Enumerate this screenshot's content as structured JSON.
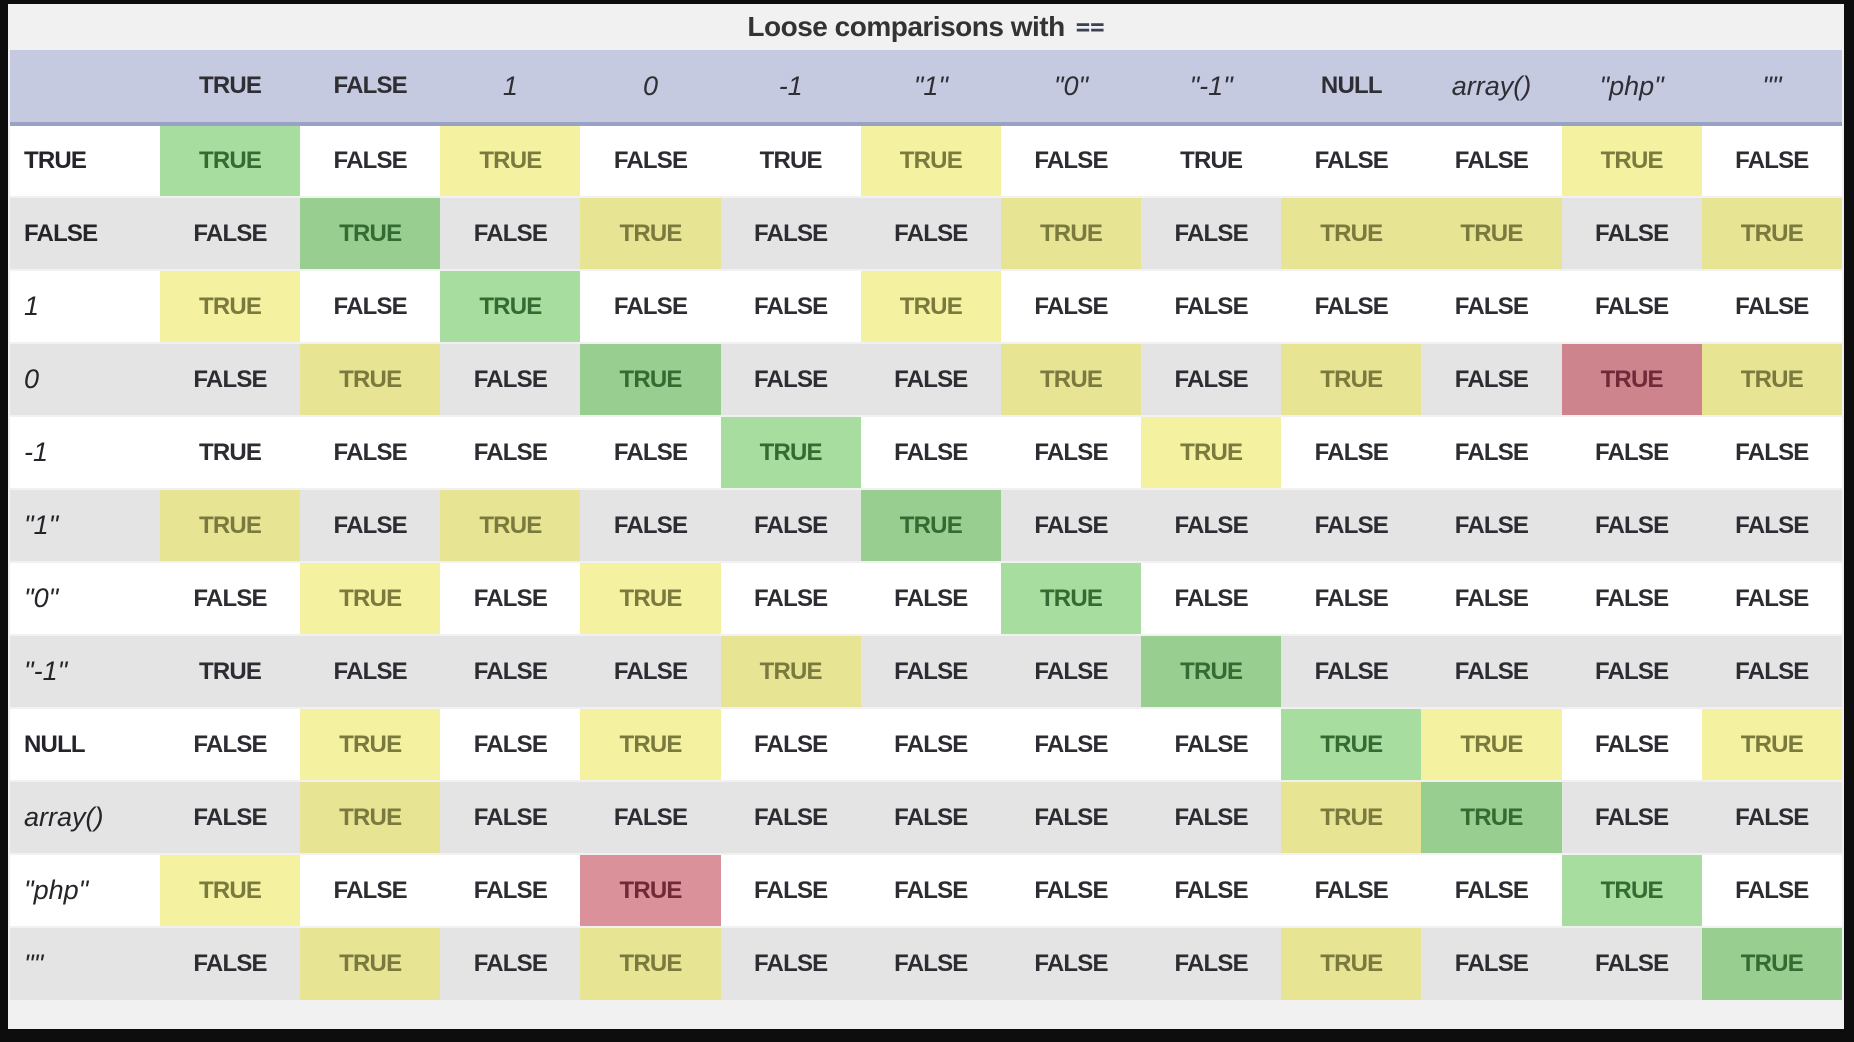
{
  "title": {
    "text": "Loose comparisons with",
    "operator": "=="
  },
  "colors": {
    "frame_bg": "#f1f1f1",
    "border_black": "#0d0d0d",
    "header_bg": "#c5cae1",
    "header_border": "#99a1c4",
    "row_alt_bg": "#e4e4e4",
    "cell_text": "#2c2c32",
    "true_same_type_bg": "rgba(60,180,40,0.45)",
    "true_same_type_text": "#346b33",
    "true_loose_bg": "rgba(233,227,67,0.5)",
    "true_loose_text": "#7b7a3e",
    "true_surprising_bg": "rgba(183,35,51,0.5)",
    "true_surprising_text": "#6f2a37"
  },
  "table": {
    "corner_label": "",
    "columns": [
      {
        "label": "TRUE",
        "kind": "keyword"
      },
      {
        "label": "FALSE",
        "kind": "keyword"
      },
      {
        "label": "1",
        "kind": "literal"
      },
      {
        "label": "0",
        "kind": "literal"
      },
      {
        "label": "-1",
        "kind": "literal"
      },
      {
        "label": "\"1\"",
        "kind": "literal"
      },
      {
        "label": "\"0\"",
        "kind": "literal"
      },
      {
        "label": "\"-1\"",
        "kind": "literal"
      },
      {
        "label": "NULL",
        "kind": "keyword"
      },
      {
        "label": "array()",
        "kind": "literal"
      },
      {
        "label": "\"php\"",
        "kind": "literal"
      },
      {
        "label": "\"\"",
        "kind": "literal"
      }
    ],
    "rows": [
      {
        "label": "TRUE",
        "kind": "keyword",
        "cells": [
          {
            "v": "TRUE",
            "hl": "green"
          },
          {
            "v": "FALSE"
          },
          {
            "v": "TRUE",
            "hl": "yellow"
          },
          {
            "v": "FALSE"
          },
          {
            "v": "TRUE"
          },
          {
            "v": "TRUE",
            "hl": "yellow"
          },
          {
            "v": "FALSE"
          },
          {
            "v": "TRUE"
          },
          {
            "v": "FALSE"
          },
          {
            "v": "FALSE"
          },
          {
            "v": "TRUE",
            "hl": "yellow"
          },
          {
            "v": "FALSE"
          }
        ]
      },
      {
        "label": "FALSE",
        "kind": "keyword",
        "cells": [
          {
            "v": "FALSE"
          },
          {
            "v": "TRUE",
            "hl": "green"
          },
          {
            "v": "FALSE"
          },
          {
            "v": "TRUE",
            "hl": "yellow"
          },
          {
            "v": "FALSE"
          },
          {
            "v": "FALSE"
          },
          {
            "v": "TRUE",
            "hl": "yellow"
          },
          {
            "v": "FALSE"
          },
          {
            "v": "TRUE",
            "hl": "yellow"
          },
          {
            "v": "TRUE",
            "hl": "yellow"
          },
          {
            "v": "FALSE"
          },
          {
            "v": "TRUE",
            "hl": "yellow"
          }
        ]
      },
      {
        "label": "1",
        "kind": "literal",
        "cells": [
          {
            "v": "TRUE",
            "hl": "yellow"
          },
          {
            "v": "FALSE"
          },
          {
            "v": "TRUE",
            "hl": "green"
          },
          {
            "v": "FALSE"
          },
          {
            "v": "FALSE"
          },
          {
            "v": "TRUE",
            "hl": "yellow"
          },
          {
            "v": "FALSE"
          },
          {
            "v": "FALSE"
          },
          {
            "v": "FALSE"
          },
          {
            "v": "FALSE"
          },
          {
            "v": "FALSE"
          },
          {
            "v": "FALSE"
          }
        ]
      },
      {
        "label": "0",
        "kind": "literal",
        "cells": [
          {
            "v": "FALSE"
          },
          {
            "v": "TRUE",
            "hl": "yellow"
          },
          {
            "v": "FALSE"
          },
          {
            "v": "TRUE",
            "hl": "green"
          },
          {
            "v": "FALSE"
          },
          {
            "v": "FALSE"
          },
          {
            "v": "TRUE",
            "hl": "yellow"
          },
          {
            "v": "FALSE"
          },
          {
            "v": "TRUE",
            "hl": "yellow"
          },
          {
            "v": "FALSE"
          },
          {
            "v": "TRUE",
            "hl": "red"
          },
          {
            "v": "TRUE",
            "hl": "yellow"
          }
        ]
      },
      {
        "label": "-1",
        "kind": "literal",
        "cells": [
          {
            "v": "TRUE"
          },
          {
            "v": "FALSE"
          },
          {
            "v": "FALSE"
          },
          {
            "v": "FALSE"
          },
          {
            "v": "TRUE",
            "hl": "green"
          },
          {
            "v": "FALSE"
          },
          {
            "v": "FALSE"
          },
          {
            "v": "TRUE",
            "hl": "yellow"
          },
          {
            "v": "FALSE"
          },
          {
            "v": "FALSE"
          },
          {
            "v": "FALSE"
          },
          {
            "v": "FALSE"
          }
        ]
      },
      {
        "label": "\"1\"",
        "kind": "literal",
        "cells": [
          {
            "v": "TRUE",
            "hl": "yellow"
          },
          {
            "v": "FALSE"
          },
          {
            "v": "TRUE",
            "hl": "yellow"
          },
          {
            "v": "FALSE"
          },
          {
            "v": "FALSE"
          },
          {
            "v": "TRUE",
            "hl": "green"
          },
          {
            "v": "FALSE"
          },
          {
            "v": "FALSE"
          },
          {
            "v": "FALSE"
          },
          {
            "v": "FALSE"
          },
          {
            "v": "FALSE"
          },
          {
            "v": "FALSE"
          }
        ]
      },
      {
        "label": "\"0\"",
        "kind": "literal",
        "cells": [
          {
            "v": "FALSE"
          },
          {
            "v": "TRUE",
            "hl": "yellow"
          },
          {
            "v": "FALSE"
          },
          {
            "v": "TRUE",
            "hl": "yellow"
          },
          {
            "v": "FALSE"
          },
          {
            "v": "FALSE"
          },
          {
            "v": "TRUE",
            "hl": "green"
          },
          {
            "v": "FALSE"
          },
          {
            "v": "FALSE"
          },
          {
            "v": "FALSE"
          },
          {
            "v": "FALSE"
          },
          {
            "v": "FALSE"
          }
        ]
      },
      {
        "label": "\"-1\"",
        "kind": "literal",
        "cells": [
          {
            "v": "TRUE"
          },
          {
            "v": "FALSE"
          },
          {
            "v": "FALSE"
          },
          {
            "v": "FALSE"
          },
          {
            "v": "TRUE",
            "hl": "yellow"
          },
          {
            "v": "FALSE"
          },
          {
            "v": "FALSE"
          },
          {
            "v": "TRUE",
            "hl": "green"
          },
          {
            "v": "FALSE"
          },
          {
            "v": "FALSE"
          },
          {
            "v": "FALSE"
          },
          {
            "v": "FALSE"
          }
        ]
      },
      {
        "label": "NULL",
        "kind": "keyword",
        "cells": [
          {
            "v": "FALSE"
          },
          {
            "v": "TRUE",
            "hl": "yellow"
          },
          {
            "v": "FALSE"
          },
          {
            "v": "TRUE",
            "hl": "yellow"
          },
          {
            "v": "FALSE"
          },
          {
            "v": "FALSE"
          },
          {
            "v": "FALSE"
          },
          {
            "v": "FALSE"
          },
          {
            "v": "TRUE",
            "hl": "green"
          },
          {
            "v": "TRUE",
            "hl": "yellow"
          },
          {
            "v": "FALSE"
          },
          {
            "v": "TRUE",
            "hl": "yellow"
          }
        ]
      },
      {
        "label": "array()",
        "kind": "literal",
        "cells": [
          {
            "v": "FALSE"
          },
          {
            "v": "TRUE",
            "hl": "yellow"
          },
          {
            "v": "FALSE"
          },
          {
            "v": "FALSE"
          },
          {
            "v": "FALSE"
          },
          {
            "v": "FALSE"
          },
          {
            "v": "FALSE"
          },
          {
            "v": "FALSE"
          },
          {
            "v": "TRUE",
            "hl": "yellow"
          },
          {
            "v": "TRUE",
            "hl": "green"
          },
          {
            "v": "FALSE"
          },
          {
            "v": "FALSE"
          }
        ]
      },
      {
        "label": "\"php\"",
        "kind": "literal",
        "cells": [
          {
            "v": "TRUE",
            "hl": "yellow"
          },
          {
            "v": "FALSE"
          },
          {
            "v": "FALSE"
          },
          {
            "v": "TRUE",
            "hl": "red"
          },
          {
            "v": "FALSE"
          },
          {
            "v": "FALSE"
          },
          {
            "v": "FALSE"
          },
          {
            "v": "FALSE"
          },
          {
            "v": "FALSE"
          },
          {
            "v": "FALSE"
          },
          {
            "v": "TRUE",
            "hl": "green"
          },
          {
            "v": "FALSE"
          }
        ]
      },
      {
        "label": "\"\"",
        "kind": "literal",
        "cells": [
          {
            "v": "FALSE"
          },
          {
            "v": "TRUE",
            "hl": "yellow"
          },
          {
            "v": "FALSE"
          },
          {
            "v": "TRUE",
            "hl": "yellow"
          },
          {
            "v": "FALSE"
          },
          {
            "v": "FALSE"
          },
          {
            "v": "FALSE"
          },
          {
            "v": "FALSE"
          },
          {
            "v": "TRUE",
            "hl": "yellow"
          },
          {
            "v": "FALSE"
          },
          {
            "v": "FALSE"
          },
          {
            "v": "TRUE",
            "hl": "green"
          }
        ]
      }
    ]
  }
}
